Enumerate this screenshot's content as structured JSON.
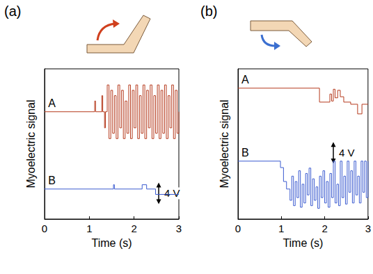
{
  "chart_data": [
    {
      "type": "line",
      "panel_label": "(a)",
      "xlabel": "Time (s)",
      "ylabel": "Myoelectric signal",
      "xlim": [
        0,
        3
      ],
      "xticks": [
        0,
        1,
        2,
        3
      ],
      "ylim": [
        0,
        28
      ],
      "tick_labels": "x",
      "line_style": "step",
      "scale_bar": {
        "value": 4,
        "label": "4 V"
      },
      "series": [
        {
          "name": "A",
          "color": "#b5391c",
          "x": [
            0,
            1.12,
            1.14,
            1.28,
            1.3,
            1.34,
            1.36,
            1.4,
            1.44,
            1.48,
            1.52,
            1.56,
            1.6,
            1.64,
            1.68,
            1.72,
            1.76,
            1.8,
            1.84,
            1.88,
            1.92,
            1.96,
            2.0,
            2.04,
            2.08,
            2.12,
            2.16,
            2.2,
            2.24,
            2.28,
            2.32,
            2.36,
            2.4,
            2.44,
            2.48,
            2.52,
            2.56,
            2.6,
            2.64,
            2.68,
            2.72,
            2.76,
            2.8,
            2.84,
            2.88,
            2.92,
            2.96,
            3.0
          ],
          "values": [
            20,
            22,
            20,
            23,
            20,
            17,
            20,
            25,
            15,
            24,
            16,
            23,
            15,
            25,
            17,
            24,
            15,
            22,
            16,
            25,
            15,
            24,
            17,
            25,
            15,
            23,
            16,
            25,
            15,
            24,
            17,
            25,
            15,
            23,
            16,
            25,
            15,
            24,
            16,
            25,
            15,
            23,
            17,
            25,
            15,
            24,
            16,
            20
          ]
        },
        {
          "name": "B",
          "color": "#3b5bd0",
          "x": [
            0,
            1.54,
            1.56,
            2.18,
            2.28,
            2.48,
            3.0
          ],
          "values": [
            5.6,
            6.4,
            5.6,
            6.4,
            5.6,
            4.6,
            4.6
          ]
        }
      ]
    },
    {
      "type": "line",
      "panel_label": "(b)",
      "xlabel": "Time (s)",
      "ylabel": "Myoelectric signal",
      "xlim": [
        0,
        3
      ],
      "xticks": [
        0,
        1,
        2,
        3
      ],
      "ylim": [
        0,
        28
      ],
      "tick_labels": "x",
      "line_style": "step",
      "scale_bar": {
        "value": 4,
        "label": "4 V"
      },
      "series": [
        {
          "name": "A",
          "color": "#b5391c",
          "x": [
            0,
            1.88,
            2.12,
            2.16,
            2.2,
            2.24,
            2.3,
            2.36,
            2.44,
            2.6,
            2.76,
            2.86,
            3.0
          ],
          "values": [
            24.4,
            21.8,
            23.3,
            22,
            24.2,
            22.6,
            24,
            22.8,
            21.8,
            21.4,
            19.6,
            21.4,
            21.4
          ]
        },
        {
          "name": "B",
          "color": "#3b5bd0",
          "x": [
            0,
            0.98,
            1.05,
            1.12,
            1.2,
            1.24,
            1.28,
            1.32,
            1.36,
            1.4,
            1.44,
            1.48,
            1.52,
            1.56,
            1.6,
            1.64,
            1.68,
            1.72,
            1.76,
            1.8,
            1.84,
            1.88,
            1.92,
            1.96,
            2.0,
            2.04,
            2.08,
            2.12,
            2.16,
            2.2,
            2.24,
            2.28,
            2.32,
            2.36,
            2.4,
            2.44,
            2.48,
            2.52,
            2.56,
            2.6,
            2.64,
            2.68,
            2.72,
            2.76,
            2.8,
            2.84,
            2.88,
            2.92,
            2.96,
            3.0
          ],
          "values": [
            10.8,
            9.6,
            7,
            5.6,
            3.5,
            8,
            2.5,
            7,
            4,
            9,
            2.2,
            6.5,
            3,
            8.5,
            4.5,
            9.5,
            2.5,
            7.5,
            3.5,
            6,
            2,
            8,
            4,
            9,
            3,
            7,
            2.2,
            8.5,
            4,
            10.8,
            3,
            6.5,
            2.5,
            10.8,
            4,
            8,
            2.8,
            10.8,
            5,
            9,
            3,
            10.8,
            4.5,
            8,
            3,
            10.8,
            5,
            10.8,
            4,
            10.8
          ]
        }
      ]
    }
  ]
}
